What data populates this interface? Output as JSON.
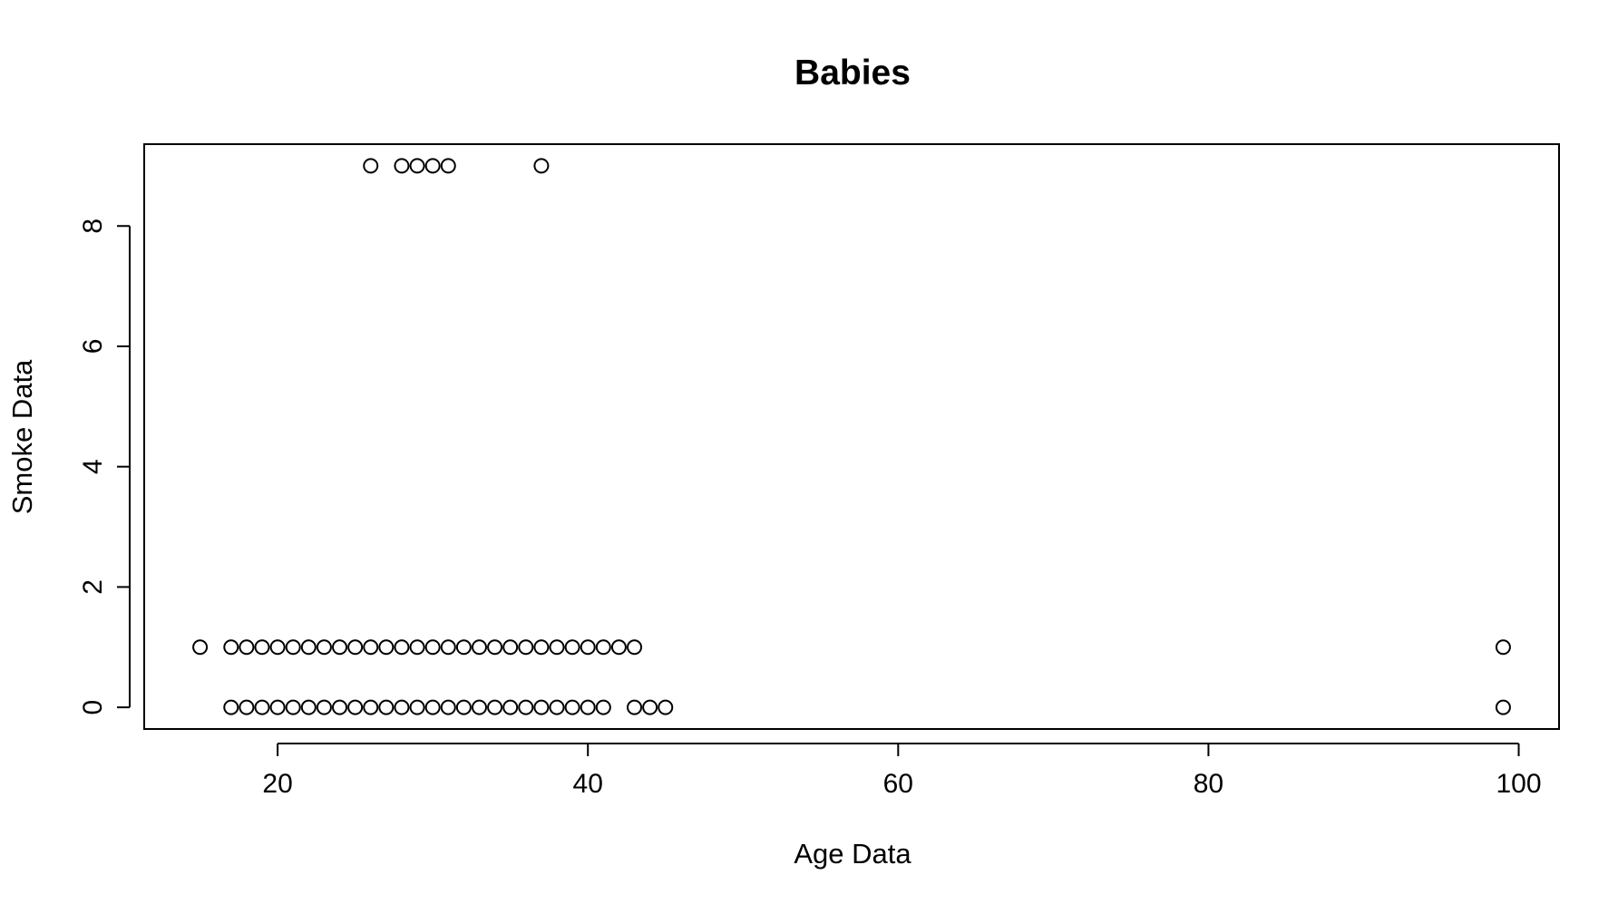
{
  "chart_data": {
    "type": "scatter",
    "title": "Babies",
    "xlabel": "Age Data",
    "ylabel": "Smoke Data",
    "xlim": [
      11.4,
      102.6
    ],
    "ylim": [
      -0.36,
      9.36
    ],
    "x_ticks": [
      "20",
      "40",
      "60",
      "80",
      "100"
    ],
    "y_ticks": [
      "0",
      "2",
      "4",
      "6",
      "8"
    ],
    "grid": false,
    "legend": "none",
    "marker": "open-circle",
    "color": "#000000",
    "series": [
      {
        "x": [
          17,
          18,
          19,
          20,
          21,
          22,
          23,
          24,
          25,
          26,
          27,
          28,
          29,
          30,
          31,
          32,
          33,
          34,
          35,
          36,
          37,
          38,
          39,
          40,
          41,
          43,
          44,
          45,
          99
        ],
        "y": [
          0,
          0,
          0,
          0,
          0,
          0,
          0,
          0,
          0,
          0,
          0,
          0,
          0,
          0,
          0,
          0,
          0,
          0,
          0,
          0,
          0,
          0,
          0,
          0,
          0,
          0,
          0,
          0,
          0
        ]
      },
      {
        "x": [
          15,
          17,
          18,
          19,
          20,
          21,
          22,
          23,
          24,
          25,
          26,
          27,
          28,
          29,
          30,
          31,
          32,
          33,
          34,
          35,
          36,
          37,
          38,
          39,
          40,
          41,
          42,
          43,
          99
        ],
        "y": [
          1,
          1,
          1,
          1,
          1,
          1,
          1,
          1,
          1,
          1,
          1,
          1,
          1,
          1,
          1,
          1,
          1,
          1,
          1,
          1,
          1,
          1,
          1,
          1,
          1,
          1,
          1,
          1,
          1
        ]
      },
      {
        "x": [
          26,
          28,
          29,
          30,
          31,
          37
        ],
        "y": [
          9,
          9,
          9,
          9,
          9,
          9
        ]
      }
    ]
  }
}
